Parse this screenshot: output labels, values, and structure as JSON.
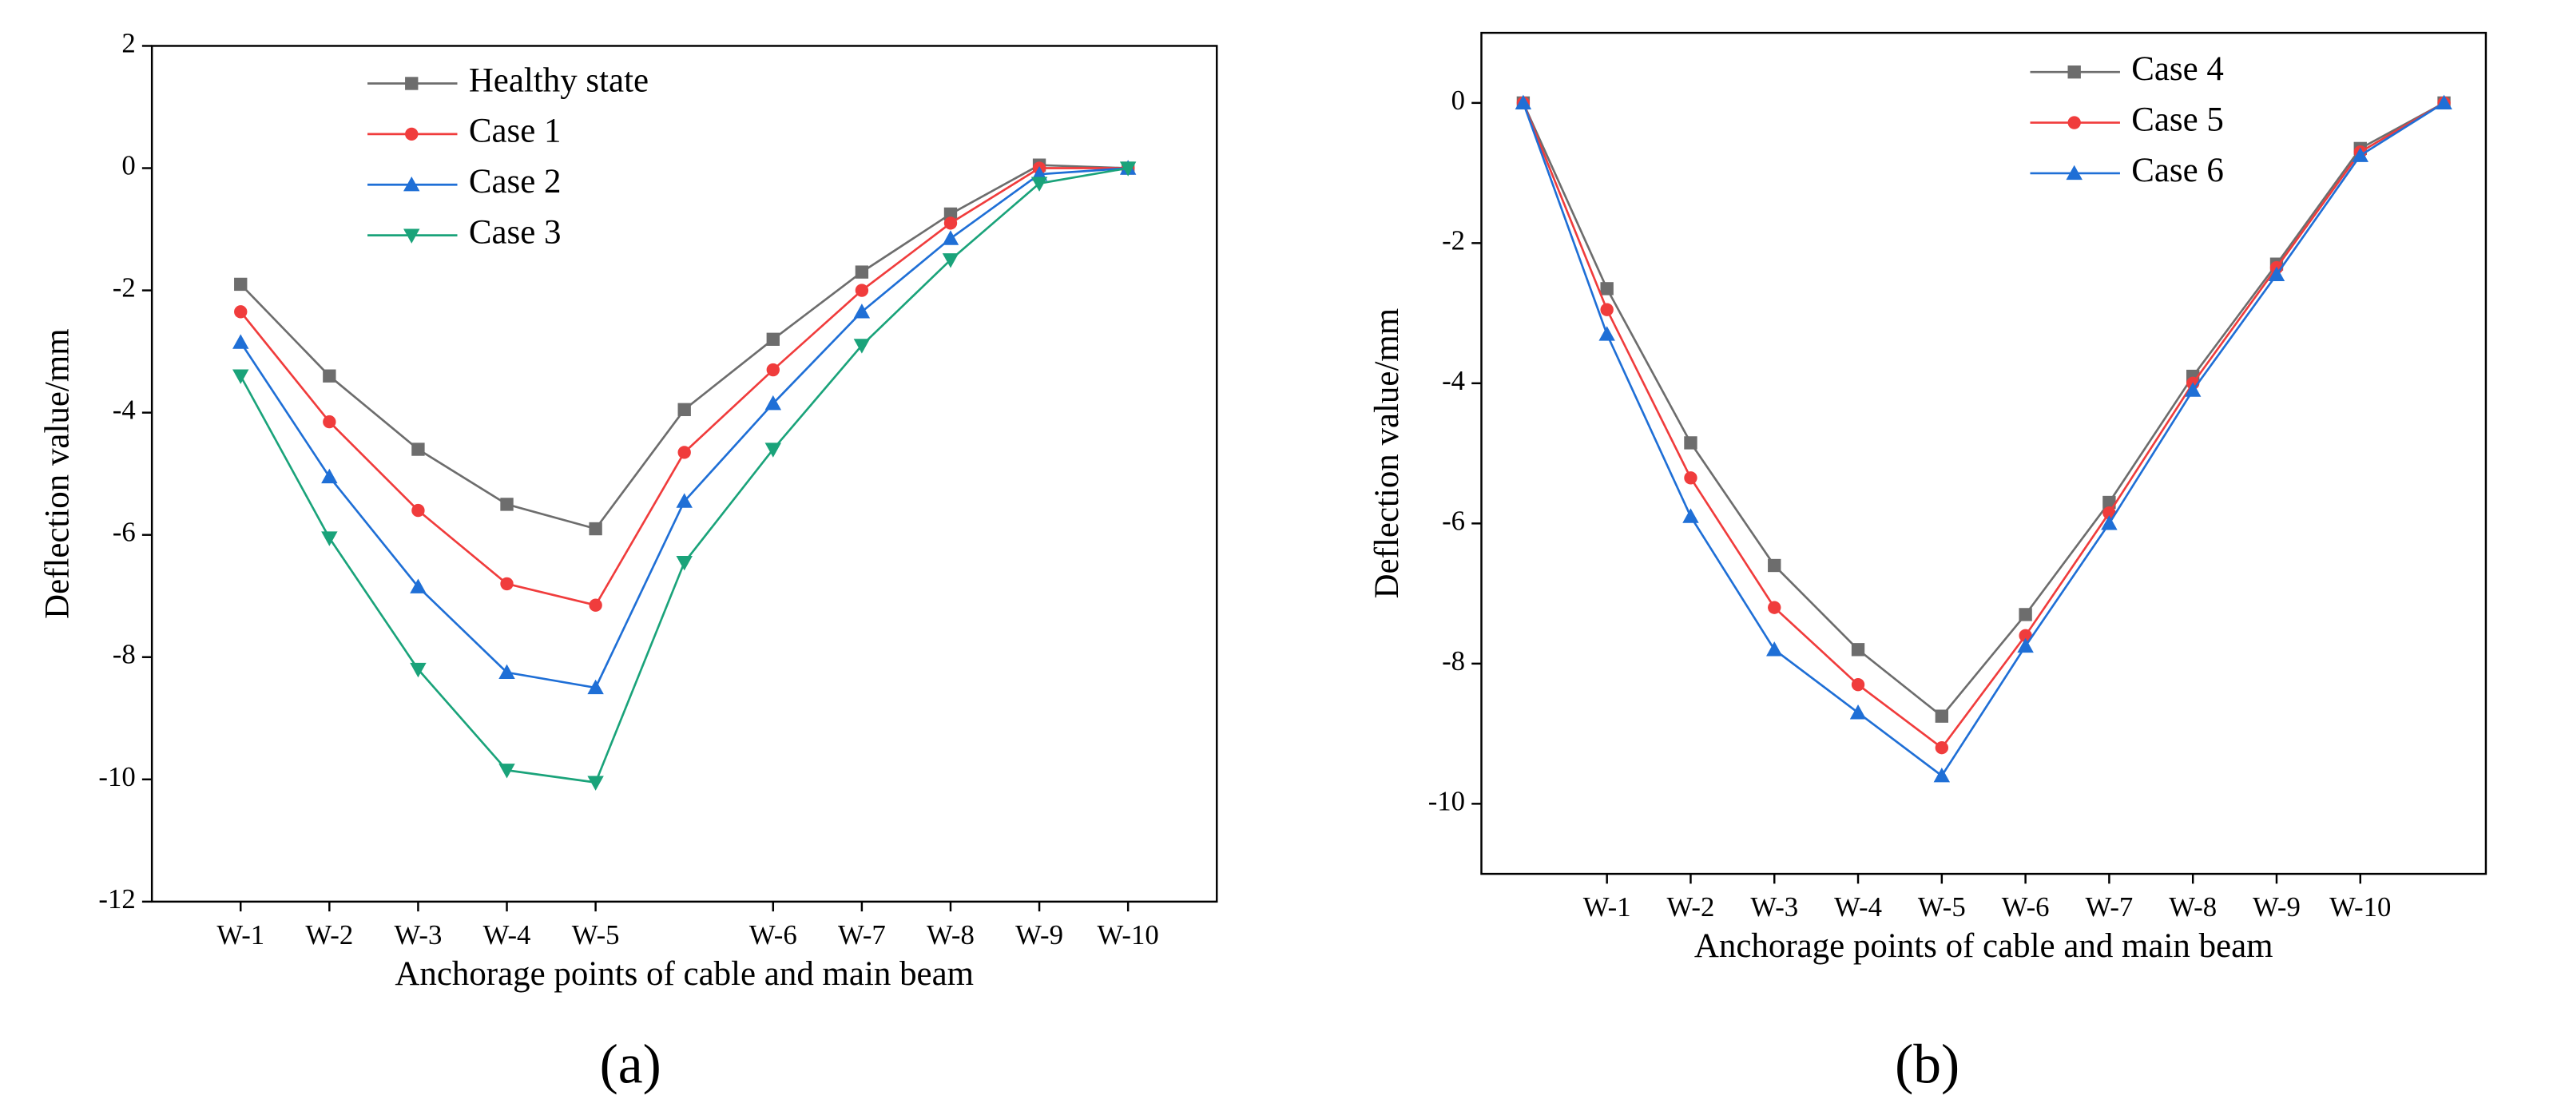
{
  "chart_data": [
    {
      "type": "line",
      "caption": "(a)",
      "xlabel": "Anchorage points of cable and main beam",
      "ylabel": "Deflection value/mm",
      "categories": [
        "W-1",
        "W-2",
        "W-3",
        "W-4",
        "W-5",
        null,
        "W-6",
        "W-7",
        "W-8",
        "W-9",
        "W-10"
      ],
      "ylim": [
        -12,
        2
      ],
      "yticks": [
        -12,
        -10,
        -8,
        -6,
        -4,
        -2,
        0,
        2
      ],
      "series": [
        {
          "name": "Healthy state",
          "color": "#6d6d6d",
          "marker": "square",
          "values": [
            -1.9,
            -3.4,
            -4.6,
            -5.5,
            -5.9,
            -3.95,
            -2.8,
            -1.7,
            -0.75,
            0.05,
            0
          ]
        },
        {
          "name": "Case 1",
          "color": "#f03c3c",
          "marker": "circle",
          "values": [
            -2.35,
            -4.15,
            -5.6,
            -6.8,
            -7.15,
            -4.65,
            -3.3,
            -2.0,
            -0.9,
            0.0,
            0
          ]
        },
        {
          "name": "Case 2",
          "color": "#1f6fd6",
          "marker": "triangle-up",
          "values": [
            -2.85,
            -5.05,
            -6.85,
            -8.25,
            -8.5,
            -5.45,
            -3.85,
            -2.35,
            -1.15,
            -0.1,
            0
          ]
        },
        {
          "name": "Case 3",
          "color": "#1aa37a",
          "marker": "triangle-down",
          "values": [
            -3.4,
            -6.05,
            -8.2,
            -9.85,
            -10.05,
            -6.45,
            -4.6,
            -2.9,
            -1.5,
            -0.25,
            0
          ]
        }
      ]
    },
    {
      "type": "line",
      "caption": "(b)",
      "xlabel": "Anchorage points of cable and main beam",
      "ylabel": "Deflection value/mm",
      "categories": [
        null,
        "W-1",
        "W-2",
        "W-3",
        "W-4",
        "W-5",
        "W-6",
        "W-7",
        "W-8",
        "W-9",
        "W-10",
        null
      ],
      "ylim": [
        -11,
        1
      ],
      "yticks": [
        -10,
        -8,
        -6,
        -4,
        -2,
        0
      ],
      "series": [
        {
          "name": "Case 4",
          "color": "#6d6d6d",
          "marker": "square",
          "values": [
            0,
            -2.65,
            -4.85,
            -6.6,
            -7.8,
            -8.75,
            -7.3,
            -5.7,
            -3.9,
            -2.3,
            -0.65,
            0
          ]
        },
        {
          "name": "Case 5",
          "color": "#f03c3c",
          "marker": "circle",
          "values": [
            0,
            -2.95,
            -5.35,
            -7.2,
            -8.3,
            -9.2,
            -7.6,
            -5.85,
            -4.0,
            -2.35,
            -0.7,
            0
          ]
        },
        {
          "name": "Case 6",
          "color": "#1f6fd6",
          "marker": "triangle-up",
          "values": [
            0,
            -3.3,
            -5.9,
            -7.8,
            -8.7,
            -9.6,
            -7.75,
            -6.0,
            -4.1,
            -2.45,
            -0.75,
            0
          ]
        }
      ]
    }
  ]
}
